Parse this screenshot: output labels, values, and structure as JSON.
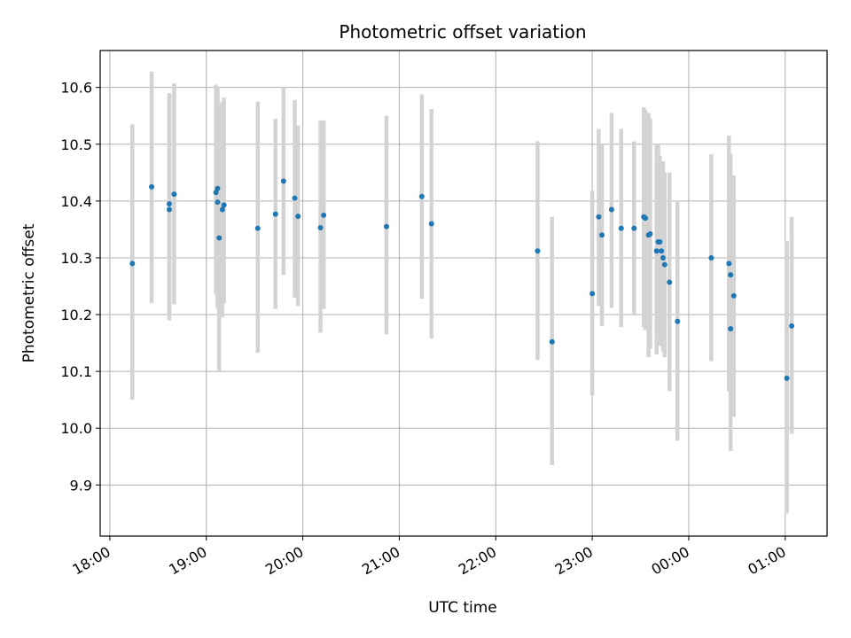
{
  "chart_data": {
    "type": "scatter",
    "title": "Photometric offset variation",
    "xlabel": "UTC time",
    "ylabel": "Photometric offset",
    "x_tick_labels": [
      "18:00",
      "19:00",
      "20:00",
      "21:00",
      "22:00",
      "23:00",
      "00:00",
      "01:00"
    ],
    "y_tick_labels": [
      "9.9",
      "10.0",
      "10.1",
      "10.2",
      "10.3",
      "10.4",
      "10.5",
      "10.6"
    ],
    "y_ticks": [
      9.9,
      10.0,
      10.1,
      10.2,
      10.3,
      10.4,
      10.5,
      10.6
    ],
    "xlim": [
      "17:54",
      "01:26"
    ],
    "ylim": [
      9.81,
      10.665
    ],
    "grid": true,
    "colors": {
      "points": "#1f77b4",
      "errorbars": "#d3d3d3",
      "grid": "#b0b0b0"
    },
    "series": [
      {
        "points": [
          {
            "x": "18:14",
            "y": 10.29,
            "lo": 10.05,
            "hi": 10.535
          },
          {
            "x": "18:26",
            "y": 10.425,
            "lo": 10.22,
            "hi": 10.628
          },
          {
            "x": "18:37",
            "y": 10.385,
            "lo": 10.19,
            "hi": 10.585
          },
          {
            "x": "18:37",
            "y": 10.395,
            "lo": 10.195,
            "hi": 10.59
          },
          {
            "x": "18:40",
            "y": 10.412,
            "lo": 10.218,
            "hi": 10.607
          },
          {
            "x": "19:06",
            "y": 10.415,
            "lo": 10.235,
            "hi": 10.605
          },
          {
            "x": "19:07",
            "y": 10.422,
            "lo": 10.24,
            "hi": 10.6
          },
          {
            "x": "19:07",
            "y": 10.398,
            "lo": 10.21,
            "hi": 10.59
          },
          {
            "x": "19:08",
            "y": 10.335,
            "lo": 10.1,
            "hi": 10.57
          },
          {
            "x": "19:10",
            "y": 10.385,
            "lo": 10.195,
            "hi": 10.575
          },
          {
            "x": "19:11",
            "y": 10.393,
            "lo": 10.22,
            "hi": 10.582
          },
          {
            "x": "19:32",
            "y": 10.352,
            "lo": 10.133,
            "hi": 10.575
          },
          {
            "x": "19:43",
            "y": 10.377,
            "lo": 10.21,
            "hi": 10.545
          },
          {
            "x": "19:48",
            "y": 10.435,
            "lo": 10.27,
            "hi": 10.6
          },
          {
            "x": "19:55",
            "y": 10.405,
            "lo": 10.23,
            "hi": 10.578
          },
          {
            "x": "19:57",
            "y": 10.373,
            "lo": 10.215,
            "hi": 10.533
          },
          {
            "x": "20:11",
            "y": 10.353,
            "lo": 10.168,
            "hi": 10.542
          },
          {
            "x": "20:13",
            "y": 10.375,
            "lo": 10.21,
            "hi": 10.542
          },
          {
            "x": "20:52",
            "y": 10.355,
            "lo": 10.165,
            "hi": 10.55
          },
          {
            "x": "21:14",
            "y": 10.408,
            "lo": 10.228,
            "hi": 10.588
          },
          {
            "x": "21:20",
            "y": 10.36,
            "lo": 10.158,
            "hi": 10.562
          },
          {
            "x": "22:26",
            "y": 10.312,
            "lo": 10.12,
            "hi": 10.505
          },
          {
            "x": "22:35",
            "y": 10.152,
            "lo": 9.935,
            "hi": 10.372
          },
          {
            "x": "23:00",
            "y": 10.237,
            "lo": 10.058,
            "hi": 10.418
          },
          {
            "x": "23:04",
            "y": 10.372,
            "lo": 10.215,
            "hi": 10.527
          },
          {
            "x": "23:06",
            "y": 10.34,
            "lo": 10.18,
            "hi": 10.5
          },
          {
            "x": "23:12",
            "y": 10.385,
            "lo": 10.212,
            "hi": 10.555
          },
          {
            "x": "23:18",
            "y": 10.352,
            "lo": 10.178,
            "hi": 10.527
          },
          {
            "x": "23:26",
            "y": 10.352,
            "lo": 10.2,
            "hi": 10.505
          },
          {
            "x": "23:32",
            "y": 10.372,
            "lo": 10.178,
            "hi": 10.565
          },
          {
            "x": "23:33",
            "y": 10.37,
            "lo": 10.173,
            "hi": 10.56
          },
          {
            "x": "23:35",
            "y": 10.34,
            "lo": 10.125,
            "hi": 10.555
          },
          {
            "x": "23:36",
            "y": 10.342,
            "lo": 10.14,
            "hi": 10.545
          },
          {
            "x": "23:40",
            "y": 10.312,
            "lo": 10.13,
            "hi": 10.5
          },
          {
            "x": "23:41",
            "y": 10.328,
            "lo": 10.16,
            "hi": 10.5
          },
          {
            "x": "23:42",
            "y": 10.328,
            "lo": 10.145,
            "hi": 10.48
          },
          {
            "x": "23:43",
            "y": 10.312,
            "lo": 10.16,
            "hi": 10.465
          },
          {
            "x": "23:44",
            "y": 10.3,
            "lo": 10.135,
            "hi": 10.47
          },
          {
            "x": "23:45",
            "y": 10.288,
            "lo": 10.125,
            "hi": 10.45
          },
          {
            "x": "23:48",
            "y": 10.257,
            "lo": 10.065,
            "hi": 10.45
          },
          {
            "x": "23:53",
            "y": 10.188,
            "lo": 9.978,
            "hi": 10.4
          },
          {
            "x": "00:14",
            "y": 10.3,
            "lo": 10.118,
            "hi": 10.482
          },
          {
            "x": "00:25",
            "y": 10.29,
            "lo": 10.065,
            "hi": 10.515
          },
          {
            "x": "00:26",
            "y": 10.27,
            "lo": 10.06,
            "hi": 10.483
          },
          {
            "x": "00:26",
            "y": 10.175,
            "lo": 9.96,
            "hi": 10.39
          },
          {
            "x": "00:28",
            "y": 10.233,
            "lo": 10.02,
            "hi": 10.445
          },
          {
            "x": "01:01",
            "y": 10.088,
            "lo": 9.85,
            "hi": 10.33
          },
          {
            "x": "01:04",
            "y": 10.18,
            "lo": 9.99,
            "hi": 10.372
          }
        ]
      }
    ]
  }
}
